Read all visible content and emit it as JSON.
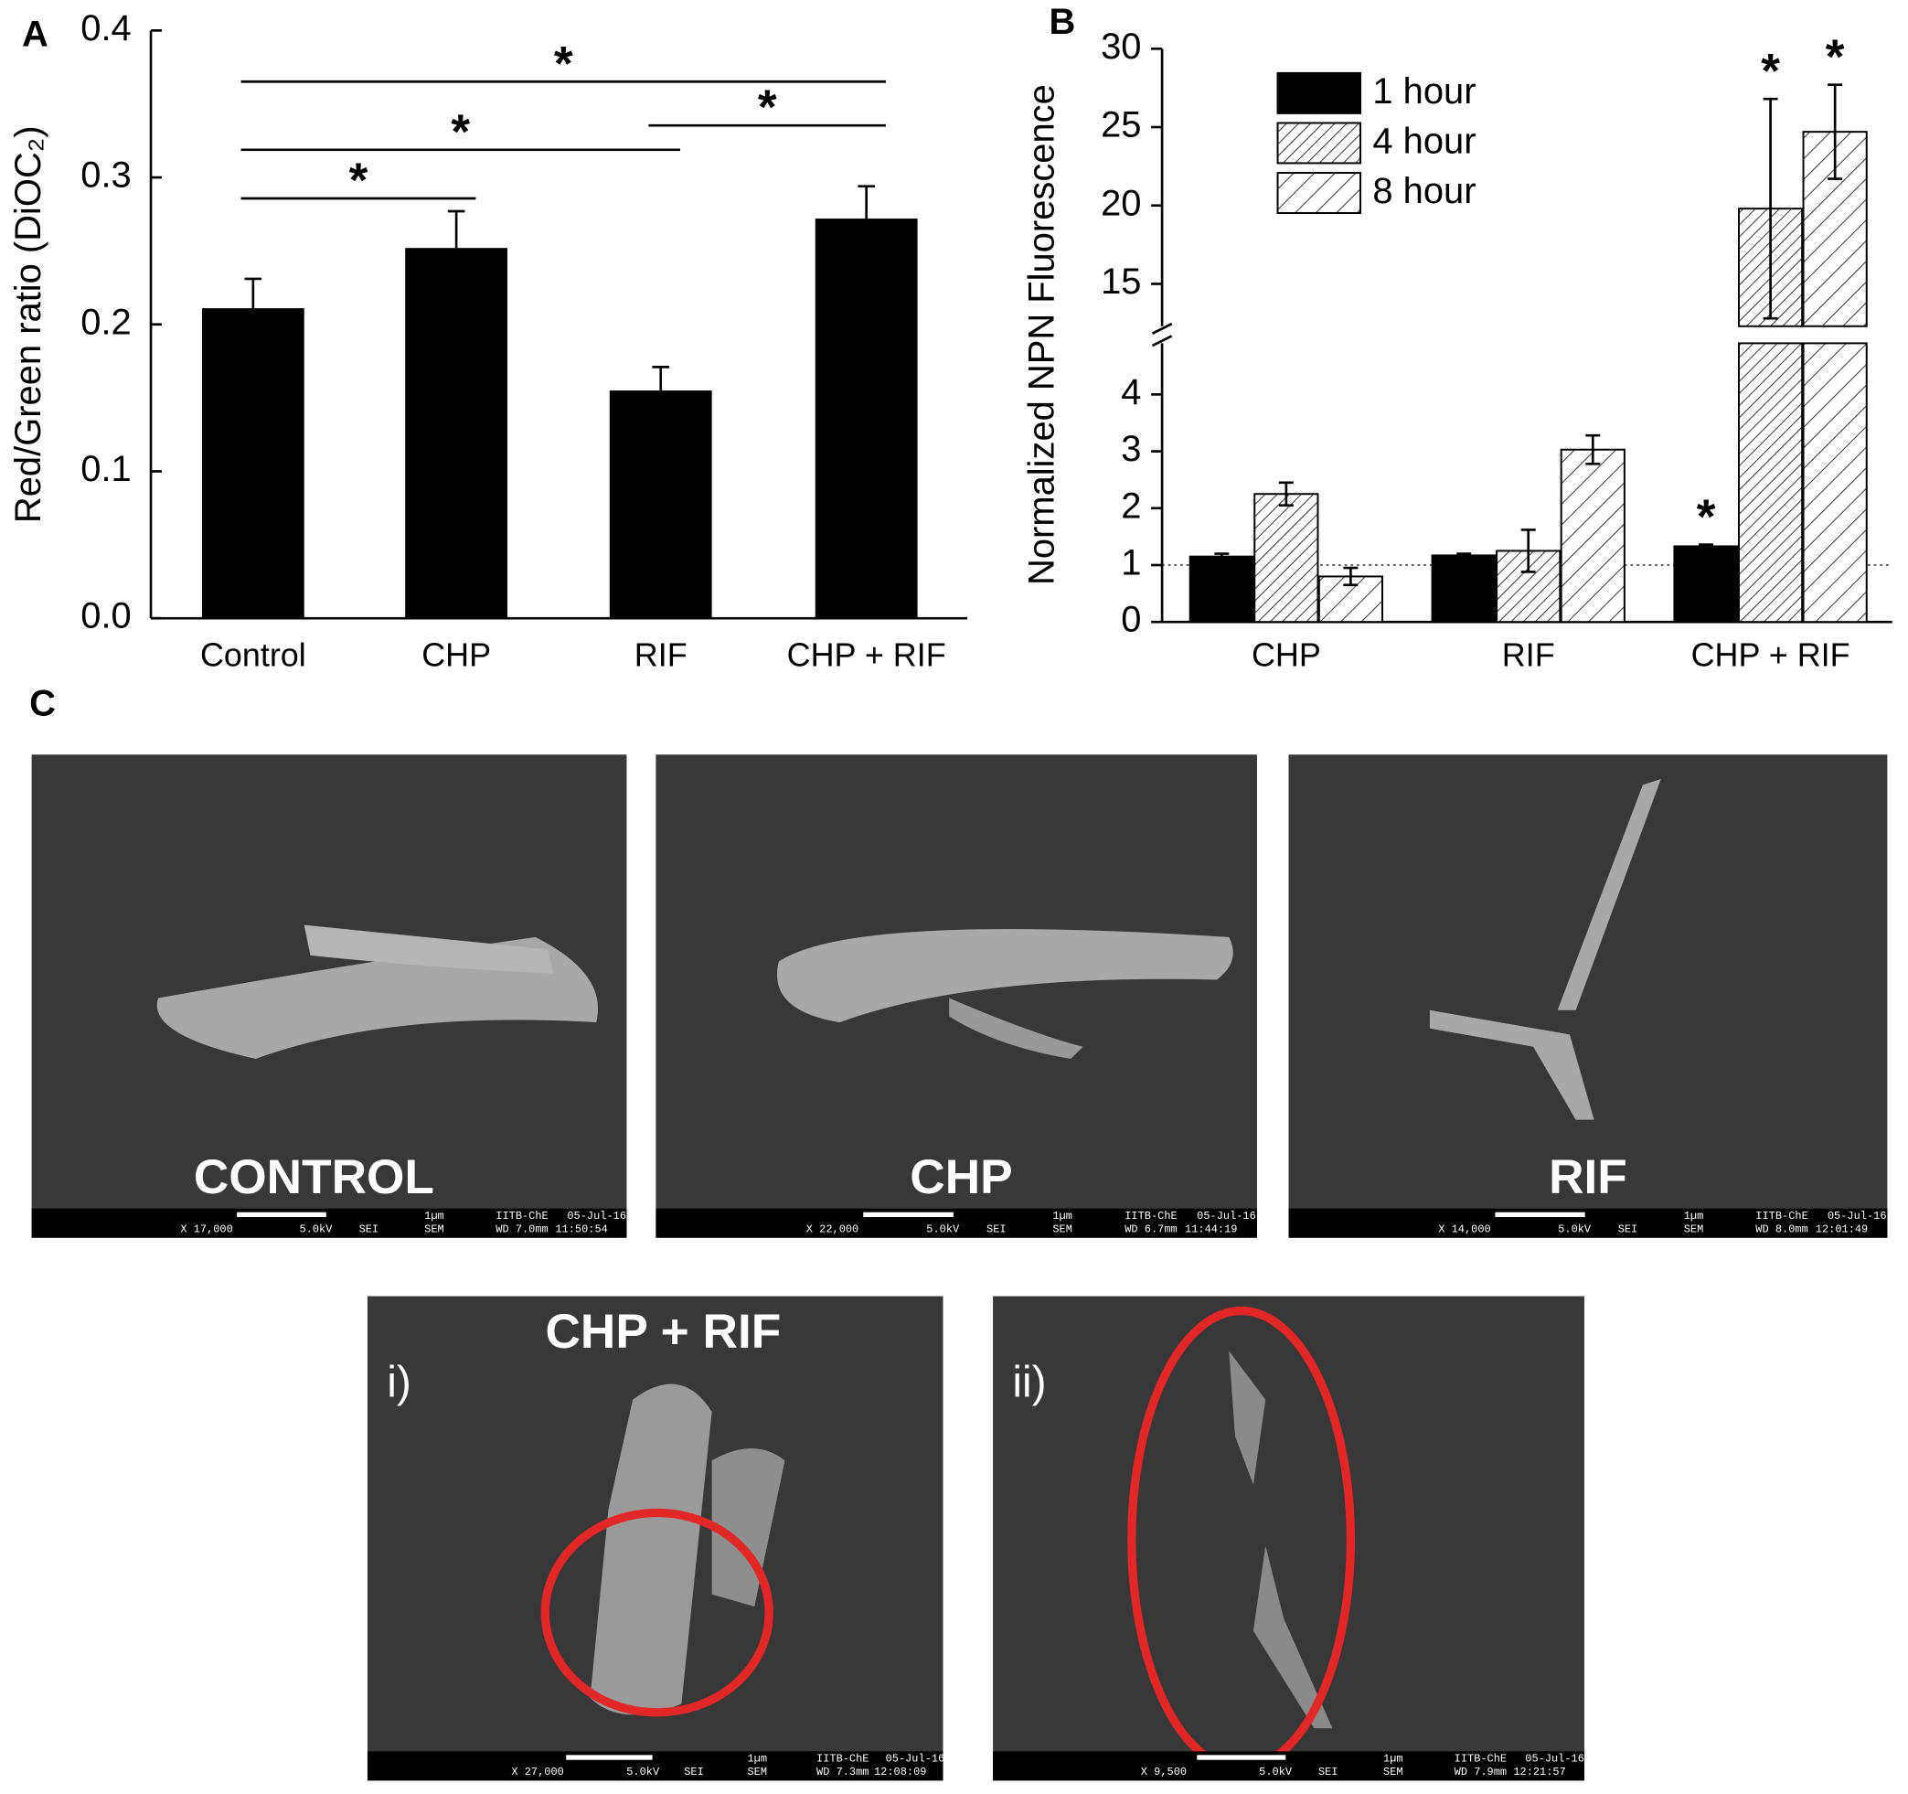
{
  "chart_data": [
    {
      "type": "bar",
      "panel_label": "A",
      "y_label": "Red/Green ratio (DiOC₂)",
      "categories": [
        "Control",
        "CHP",
        "RIF",
        "CHP + RIF"
      ],
      "values": [
        0.211,
        0.252,
        0.155,
        0.272
      ],
      "errors": [
        0.02,
        0.025,
        0.016,
        0.022
      ],
      "color": "#000000",
      "ylim": [
        0,
        0.4
      ],
      "yticks": [
        {
          "value": 0,
          "label": "0.0"
        },
        0.1,
        0.2,
        0.3,
        0.4
      ],
      "significance": [
        {
          "groups": [
            "Control",
            "CHP"
          ],
          "label": "*"
        },
        {
          "groups": [
            "Control",
            "RIF"
          ],
          "label": "*"
        },
        {
          "groups": [
            "RIF",
            "CHP + RIF"
          ],
          "label": "*"
        },
        {
          "groups": [
            "Control",
            "CHP + RIF"
          ],
          "label": "*"
        }
      ]
    },
    {
      "type": "grouped_bar",
      "panel_label": "B",
      "y_label": "Normalized NPN Fluorescence",
      "categories": [
        "CHP",
        "RIF",
        "CHP + RIF"
      ],
      "series": [
        {
          "name": "1 hour",
          "color": "#000000",
          "values": [
            1.15,
            1.17,
            1.33
          ],
          "errors": [
            0.05,
            0.03,
            0.03
          ],
          "annotations": [
            null,
            null,
            "*"
          ]
        },
        {
          "name": "4 hour",
          "color": "#000000",
          "hatch": "dense",
          "values": [
            2.25,
            1.25,
            19.8
          ],
          "errors": [
            0.2,
            0.37,
            7
          ],
          "annotations": [
            null,
            null,
            "*"
          ]
        },
        {
          "name": "8 hour",
          "color": "#000000",
          "hatch": "sparse",
          "values": [
            0.8,
            3.03,
            24.7
          ],
          "errors": [
            0.15,
            0.25,
            3
          ],
          "annotations": [
            null,
            null,
            "*"
          ]
        }
      ],
      "ylim": [
        0,
        30
      ],
      "ybreak": [
        4.9,
        12.3
      ],
      "yticks": [
        0,
        1,
        2,
        3,
        4,
        15,
        20,
        25,
        30
      ],
      "reference_line": 1,
      "legend": "top-left"
    }
  ],
  "figure": {
    "panel_label": "C",
    "images": [
      {
        "caption": "CONTROL",
        "magnification": "X 17,000",
        "voltage": "5.0kV",
        "mode": "SEI",
        "scale": "1µm",
        "lab": "IITB-ChE",
        "date": "05-Jul-16",
        "instrument": "SEM",
        "wd": "WD 7.0mm",
        "time": "11:50:54"
      },
      {
        "caption": "CHP",
        "magnification": "X 22,000",
        "voltage": "5.0kV",
        "mode": "SEI",
        "scale": "1µm",
        "lab": "IITB-ChE",
        "date": "05-Jul-16",
        "instrument": "SEM",
        "wd": "WD 6.7mm",
        "time": "11:44:19"
      },
      {
        "caption": "RIF",
        "magnification": "X 14,000",
        "voltage": "5.0kV",
        "mode": "SEI",
        "scale": "1µm",
        "lab": "IITB-ChE",
        "date": "05-Jul-16",
        "instrument": "SEM",
        "wd": "WD 8.0mm",
        "time": "12:01:49"
      },
      {
        "caption": "CHP + RIF",
        "sub": "i)",
        "magnification": "X 27,000",
        "voltage": "5.0kV",
        "mode": "SEI",
        "scale": "1µm",
        "lab": "IITB-ChE",
        "date": "05-Jul-16",
        "instrument": "SEM",
        "wd": "WD 7.3mm",
        "time": "12:08:09"
      },
      {
        "sub": "ii)",
        "magnification": "X 9,500",
        "voltage": "5.0kV",
        "mode": "SEI",
        "scale": "1µm",
        "lab": "IITB-ChE",
        "date": "05-Jul-16",
        "instrument": "SEM",
        "wd": "WD 7.9mm",
        "time": "12:21:57"
      }
    ]
  }
}
